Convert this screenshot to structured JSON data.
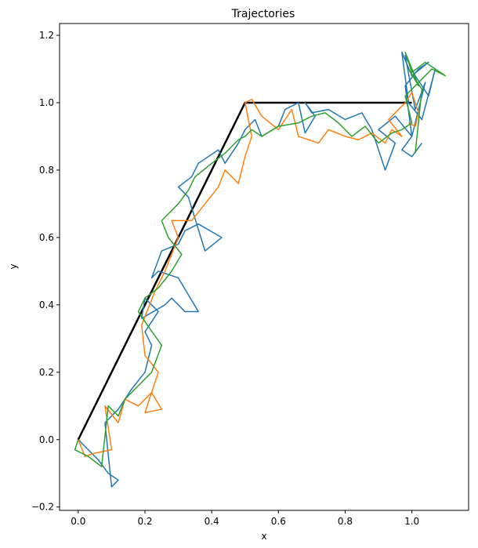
{
  "chart_data": {
    "type": "line",
    "title": "Trajectories",
    "xlabel": "x",
    "ylabel": "y",
    "xlim": [
      -0.056,
      1.17
    ],
    "ylim": [
      -0.21,
      1.235
    ],
    "xticks": [
      "0.0",
      "0.2",
      "0.4",
      "0.6",
      "0.8",
      "1.0"
    ],
    "yticks": [
      "−0.2",
      "0.0",
      "0.2",
      "0.4",
      "0.6",
      "0.8",
      "1.0",
      "1.2"
    ],
    "grid": false,
    "legend": "none",
    "reference_path": {
      "color": "#000000",
      "x": [
        0.0,
        0.5,
        1.0
      ],
      "y": [
        0.0,
        1.0,
        1.0
      ]
    },
    "series": [
      {
        "color": "#1f77b4",
        "x": [
          0.0,
          0.03,
          0.06,
          0.09,
          0.12,
          0.1,
          0.08,
          0.12,
          0.16,
          0.2,
          0.22,
          0.2,
          0.24,
          0.2,
          0.19,
          0.26,
          0.28,
          0.32,
          0.36,
          0.3,
          0.24,
          0.22,
          0.25,
          0.3,
          0.32,
          0.36,
          0.43,
          0.38,
          0.33,
          0.3,
          0.34,
          0.36,
          0.42,
          0.44,
          0.48,
          0.5,
          0.53,
          0.55,
          0.6,
          0.62,
          0.66,
          0.68,
          0.71,
          0.68,
          0.7,
          0.75,
          0.8,
          0.85,
          0.88,
          0.92,
          0.95,
          0.9,
          0.95,
          1.0,
          0.98,
          1.02,
          1.05,
          1.0,
          0.97,
          0.99,
          1.03,
          1.07,
          1.05,
          1.01,
          0.98,
          1.01,
          1.04,
          1.0,
          0.97,
          1.0,
          1.03
        ],
        "y": [
          0.0,
          -0.03,
          -0.06,
          -0.1,
          -0.12,
          -0.14,
          0.05,
          0.09,
          0.15,
          0.2,
          0.28,
          0.32,
          0.38,
          0.42,
          0.36,
          0.4,
          0.42,
          0.38,
          0.38,
          0.48,
          0.5,
          0.48,
          0.56,
          0.58,
          0.62,
          0.64,
          0.6,
          0.56,
          0.72,
          0.75,
          0.78,
          0.82,
          0.86,
          0.82,
          0.88,
          0.92,
          0.95,
          0.9,
          0.93,
          0.98,
          1.0,
          0.91,
          0.96,
          1.0,
          0.97,
          0.98,
          0.95,
          0.97,
          0.92,
          0.8,
          0.88,
          0.92,
          0.96,
          0.9,
          1.05,
          1.1,
          1.12,
          1.08,
          1.15,
          1.0,
          0.95,
          1.1,
          1.02,
          1.08,
          1.14,
          0.98,
          1.06,
          0.9,
          0.86,
          0.84,
          0.88
        ]
      },
      {
        "color": "#ff7f0e",
        "x": [
          0.0,
          0.02,
          0.05,
          0.1,
          0.08,
          0.12,
          0.14,
          0.18,
          0.22,
          0.25,
          0.2,
          0.24,
          0.2,
          0.19,
          0.23,
          0.26,
          0.3,
          0.28,
          0.34,
          0.38,
          0.42,
          0.44,
          0.48,
          0.5,
          0.52,
          0.51,
          0.5,
          0.52,
          0.55,
          0.6,
          0.64,
          0.66,
          0.72,
          0.75,
          0.8,
          0.84,
          0.88,
          0.92,
          0.94,
          0.97,
          0.93,
          0.98,
          1.0,
          1.02,
          1.01,
          0.99
        ],
        "y": [
          0.0,
          -0.05,
          -0.04,
          -0.03,
          0.1,
          0.05,
          0.12,
          0.1,
          0.14,
          0.09,
          0.08,
          0.2,
          0.25,
          0.34,
          0.44,
          0.5,
          0.6,
          0.65,
          0.65,
          0.7,
          0.75,
          0.8,
          0.76,
          0.84,
          0.9,
          0.95,
          1.0,
          1.01,
          0.96,
          0.92,
          0.98,
          0.9,
          0.88,
          0.92,
          0.9,
          0.89,
          0.91,
          0.88,
          0.92,
          0.9,
          0.95,
          1.0,
          1.03,
          0.97,
          0.93,
          0.94
        ]
      },
      {
        "color": "#2ca02c",
        "x": [
          0.0,
          -0.01,
          0.03,
          0.07,
          0.09,
          0.12,
          0.14,
          0.18,
          0.22,
          0.25,
          0.2,
          0.18,
          0.2,
          0.24,
          0.28,
          0.31,
          0.27,
          0.25,
          0.3,
          0.33,
          0.35,
          0.4,
          0.44,
          0.46,
          0.48,
          0.5,
          0.52,
          0.55,
          0.6,
          0.66,
          0.7,
          0.74,
          0.78,
          0.82,
          0.86,
          0.9,
          0.94,
          0.97,
          1.0,
          0.98,
          1.02,
          1.06,
          1.1,
          1.04,
          1.0,
          0.98,
          1.02,
          0.99,
          1.03,
          1.01
        ],
        "y": [
          0.0,
          -0.03,
          -0.05,
          -0.08,
          0.1,
          0.07,
          0.12,
          0.16,
          0.2,
          0.28,
          0.35,
          0.38,
          0.42,
          0.45,
          0.5,
          0.55,
          0.6,
          0.65,
          0.7,
          0.74,
          0.78,
          0.82,
          0.85,
          0.87,
          0.89,
          0.9,
          0.92,
          0.9,
          0.93,
          0.94,
          0.96,
          0.97,
          0.94,
          0.9,
          0.93,
          0.88,
          0.91,
          0.92,
          0.94,
          1.02,
          1.06,
          1.1,
          1.08,
          1.12,
          1.09,
          1.15,
          1.05,
          1.1,
          1.04,
          0.85
        ]
      }
    ]
  }
}
